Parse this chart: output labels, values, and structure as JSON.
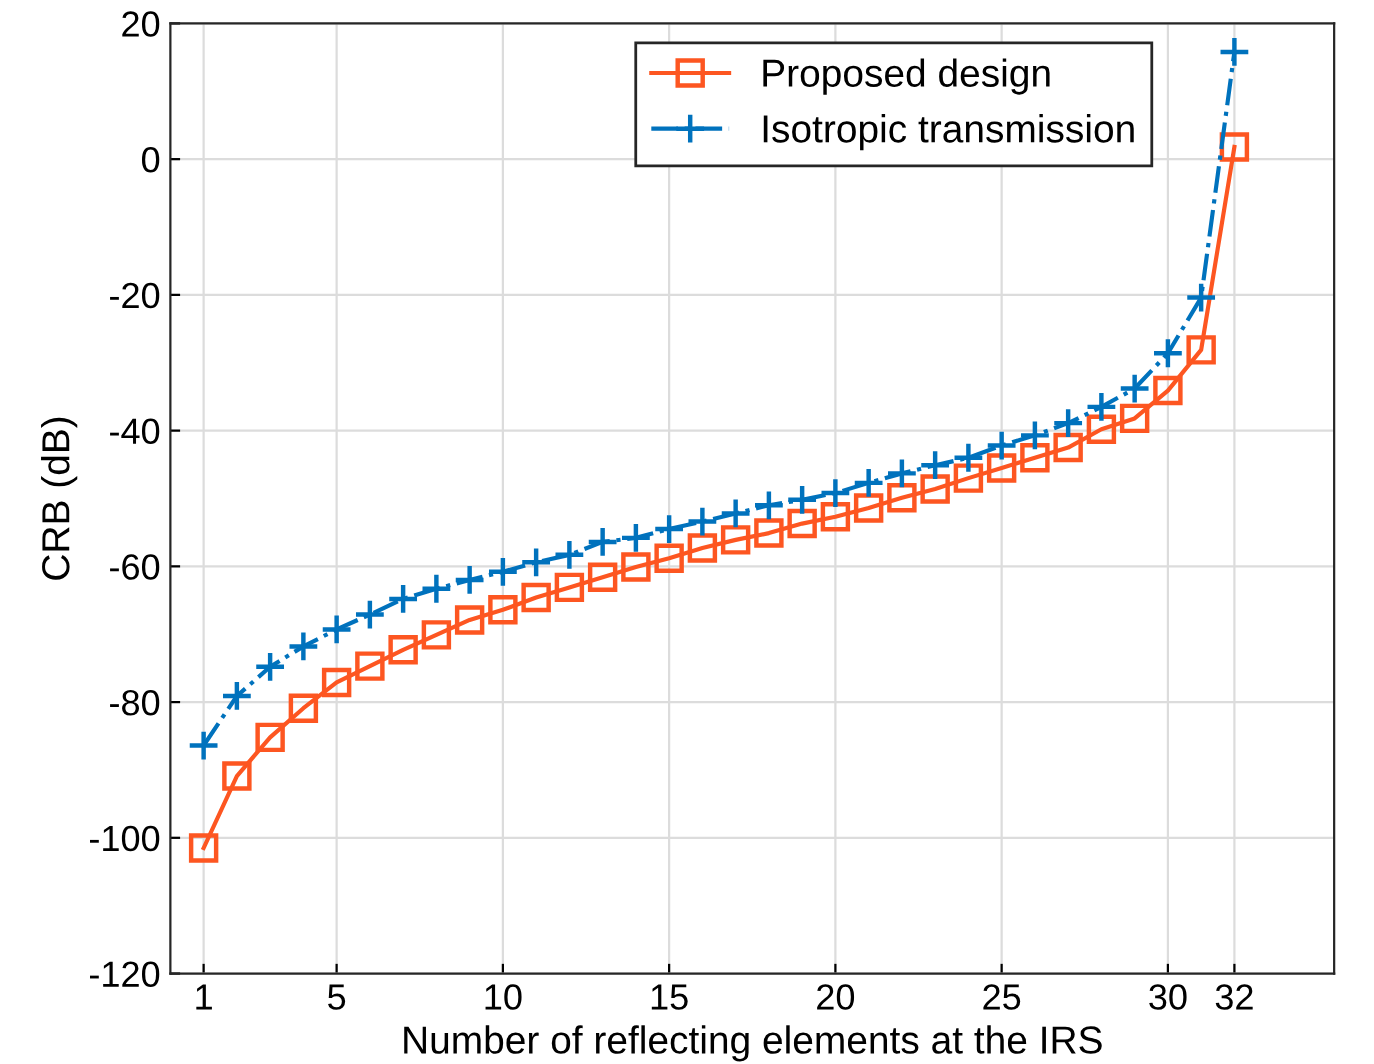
{
  "chart_data": {
    "type": "line",
    "xlabel": "Number of reflecting elements at the IRS",
    "ylabel": "CRB (dB)",
    "x": [
      1,
      2,
      3,
      4,
      5,
      6,
      7,
      8,
      9,
      10,
      11,
      12,
      13,
      14,
      15,
      16,
      17,
      18,
      19,
      20,
      21,
      22,
      23,
      24,
      25,
      26,
      27,
      28,
      29,
      30,
      31,
      32
    ],
    "xlim": [
      0,
      35
    ],
    "xticks": [
      1,
      5,
      10,
      15,
      20,
      25,
      30,
      32
    ],
    "ylim": [
      -120,
      20
    ],
    "yticks": [
      -120,
      -100,
      -80,
      -60,
      -40,
      -20,
      0,
      20
    ],
    "grid": true,
    "legend": "top right",
    "series": [
      {
        "name": "Proposed design",
        "color": "#fd5621",
        "marker": "square",
        "line_style": "solid",
        "values": [
          -101.5,
          -90.9,
          -85.2,
          -80.9,
          -77.1,
          -74.7,
          -72.3,
          -70.1,
          -67.9,
          -66.4,
          -64.6,
          -63.1,
          -61.6,
          -60.1,
          -58.8,
          -57.3,
          -56.1,
          -55.1,
          -53.7,
          -52.7,
          -51.4,
          -49.9,
          -48.6,
          -47.0,
          -45.5,
          -44.0,
          -42.5,
          -39.8,
          -38.2,
          -34.1,
          -28.1,
          1.8
        ]
      },
      {
        "name": "Isotropic transmission",
        "color": "#0072bd",
        "marker": "cross",
        "line_style": "dashdot",
        "values": [
          -86.4,
          -79.1,
          -74.8,
          -71.8,
          -69.3,
          -67.1,
          -64.8,
          -63.3,
          -62.0,
          -60.8,
          -59.4,
          -58.3,
          -56.4,
          -55.8,
          -54.5,
          -53.4,
          -52.2,
          -51.0,
          -50.2,
          -49.2,
          -47.7,
          -46.3,
          -45.1,
          -44.0,
          -42.2,
          -40.7,
          -38.9,
          -36.5,
          -33.8,
          -28.6,
          -20.4,
          15.8
        ]
      }
    ]
  }
}
